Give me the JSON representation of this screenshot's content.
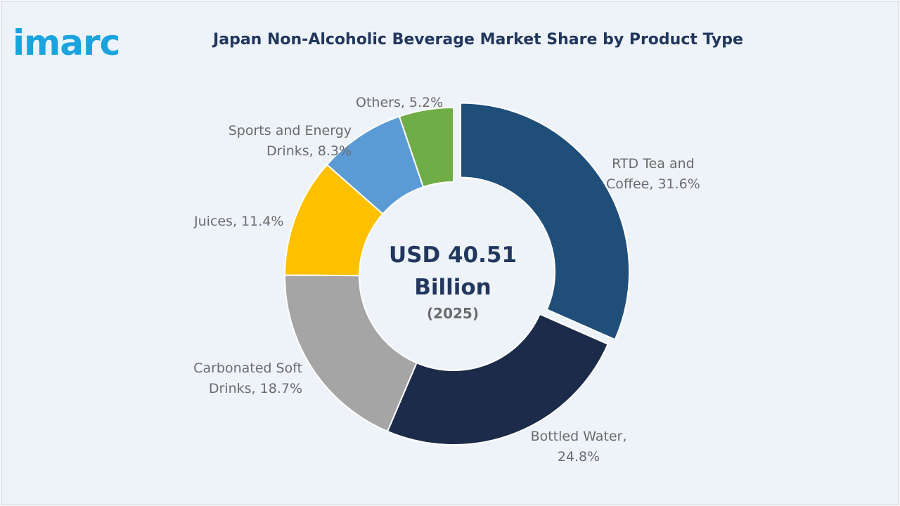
{
  "logo": "imarc",
  "chart_data": {
    "type": "pie",
    "title": "Japan Non-Alcoholic Beverage Market Share by Product Type",
    "center": {
      "value_line1": "USD 40.51",
      "value_line2": "Billion",
      "year": "(2025)"
    },
    "categories": [
      "RTD Tea and Coffee",
      "Bottled Water",
      "Carbonated Soft Drinks",
      "Juices",
      "Sports and Energy Drinks",
      "Others"
    ],
    "values": [
      31.6,
      24.8,
      18.7,
      11.4,
      8.3,
      5.2
    ],
    "unit": "%",
    "colors": [
      "#1f4e79",
      "#1c2b4a",
      "#a5a5a5",
      "#ffc000",
      "#5b9bd5",
      "#70ad47"
    ],
    "labels": [
      {
        "line1": "RTD Tea and",
        "line2": "Coffee, 31.6%"
      },
      {
        "line1": "Bottled Water,",
        "line2": "24.8%"
      },
      {
        "line1": "Carbonated Soft",
        "line2": "Drinks, 18.7%"
      },
      {
        "line1": "Juices, 11.4%",
        "line2": ""
      },
      {
        "line1": "Sports and Energy",
        "line2": "Drinks, 8.3%"
      },
      {
        "line1": "Others, 5.2%",
        "line2": ""
      }
    ]
  }
}
